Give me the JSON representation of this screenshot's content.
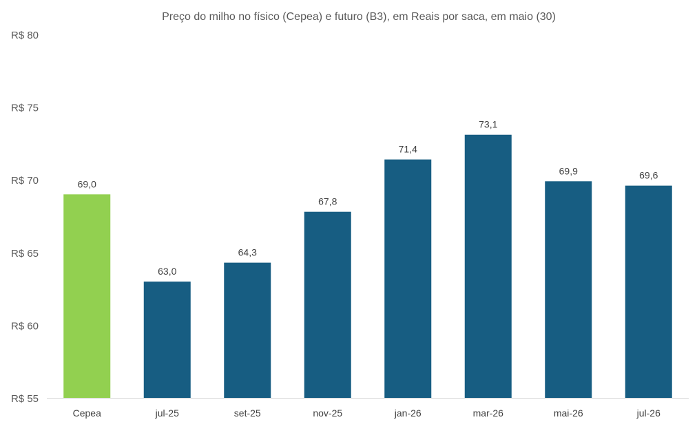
{
  "chart_data": {
    "type": "bar",
    "title": "Preço do milho no físico (Cepea) e futuro (B3), em Reais por saca, em maio (30)",
    "categories": [
      "Cepea",
      "jul-25",
      "set-25",
      "nov-25",
      "jan-26",
      "mar-26",
      "mai-26",
      "jul-26"
    ],
    "values": [
      69.0,
      63.0,
      64.3,
      67.8,
      71.4,
      73.1,
      69.9,
      69.6
    ],
    "data_labels": [
      "69,0",
      "63,0",
      "64,3",
      "67,8",
      "71,4",
      "73,1",
      "69,9",
      "69,6"
    ],
    "bar_colors": [
      "#92d050",
      "#175d82",
      "#175d82",
      "#175d82",
      "#175d82",
      "#175d82",
      "#175d82",
      "#175d82"
    ],
    "ylim": [
      55,
      80
    ],
    "yticks": [
      55,
      60,
      65,
      70,
      75,
      80
    ],
    "ytick_labels": [
      "R$ 55",
      "R$ 60",
      "R$ 65",
      "R$ 70",
      "R$ 75",
      "R$ 80"
    ],
    "xlabel": "",
    "ylabel": "",
    "grid": false,
    "legend": "none",
    "axis_color": "#d9d9d9"
  }
}
